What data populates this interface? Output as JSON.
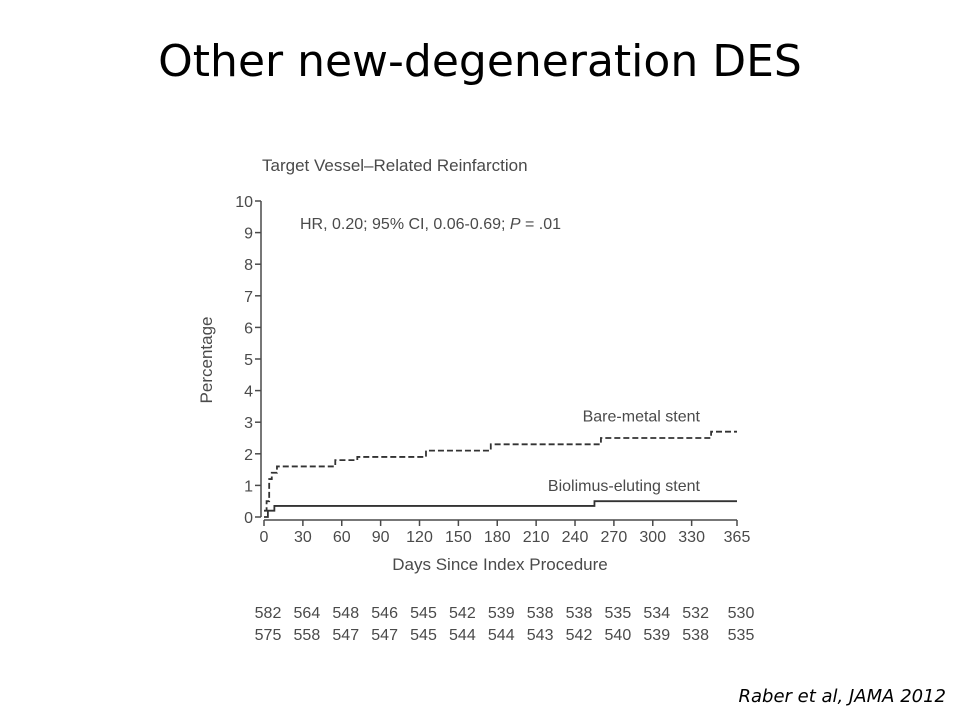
{
  "slide": {
    "title": "Other new-degeneration DES",
    "citation": "Raber et al, JAMA 2012"
  },
  "colors": {
    "axis": "#4a4a4a",
    "series": "#333333",
    "text": "#4a4a4a"
  },
  "chart_data": {
    "type": "line",
    "step": true,
    "title": "Target Vessel–Related Reinfarction",
    "annotation": "HR, 0.20; 95% CI, 0.06-0.69; P = .01",
    "annotation_parts": [
      "HR, 0.20; 95% CI, 0.06-0.69; ",
      "P",
      " = .01"
    ],
    "xlabel": "Days Since Index Procedure",
    "ylabel": "Percentage",
    "xlim": [
      0,
      365
    ],
    "ylim": [
      0,
      10
    ],
    "xticks": [
      "0",
      "30",
      "60",
      "90",
      "120",
      "150",
      "180",
      "210",
      "240",
      "270",
      "300",
      "330",
      "365"
    ],
    "yticks": [
      "0",
      "1",
      "2",
      "3",
      "4",
      "5",
      "6",
      "7",
      "8",
      "9",
      "10"
    ],
    "grid": false,
    "series": [
      {
        "name": "Bare-metal stent",
        "style": "dashed",
        "x": [
          0,
          2,
          4,
          6,
          10,
          55,
          72,
          125,
          175,
          260,
          345,
          365
        ],
        "y": [
          0.2,
          0.5,
          1.2,
          1.4,
          1.6,
          1.8,
          1.9,
          2.1,
          2.3,
          2.5,
          2.7,
          2.7
        ]
      },
      {
        "name": "Biolimus-eluting stent",
        "style": "solid",
        "x": [
          0,
          3,
          8,
          255,
          365
        ],
        "y": [
          0,
          0.2,
          0.35,
          0.5,
          0.5
        ]
      }
    ],
    "number_at_risk": {
      "days": [
        0,
        30,
        60,
        90,
        120,
        150,
        180,
        210,
        240,
        270,
        300,
        330,
        365
      ],
      "rows": [
        {
          "values": [
            582,
            564,
            548,
            546,
            545,
            542,
            539,
            538,
            538,
            535,
            534,
            532,
            530
          ]
        },
        {
          "values": [
            575,
            558,
            547,
            547,
            545,
            544,
            544,
            543,
            542,
            540,
            539,
            538,
            535
          ]
        }
      ]
    }
  }
}
